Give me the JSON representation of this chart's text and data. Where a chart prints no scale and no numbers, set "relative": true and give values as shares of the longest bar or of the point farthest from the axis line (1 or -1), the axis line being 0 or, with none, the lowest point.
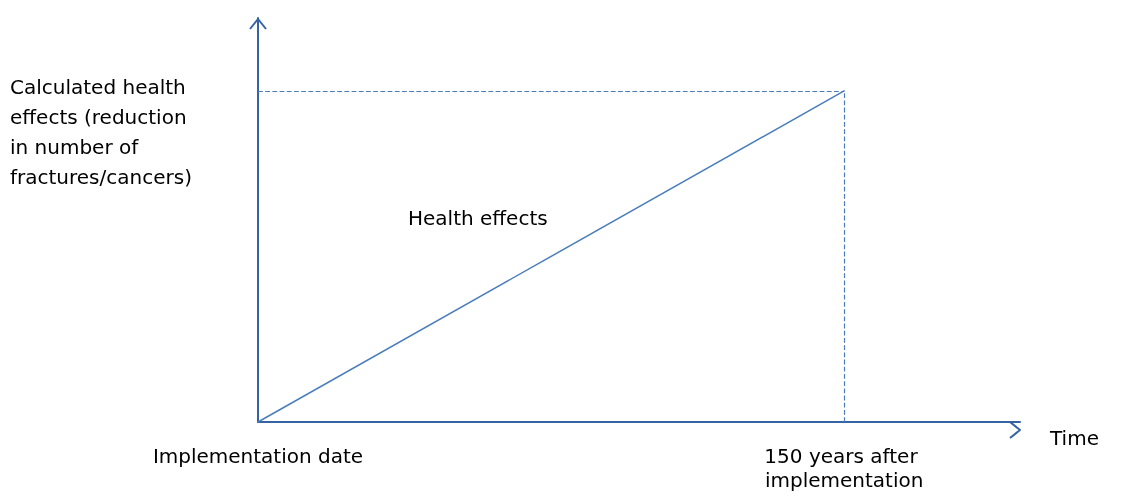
{
  "chart_data": {
    "type": "line",
    "relative": true,
    "ylabel": "Calculated health effects (reduction in number of fractures/cancers)",
    "xlabel": "Time",
    "categories": [
      "Implementation date",
      "150 years after implementation"
    ],
    "series": [
      {
        "color": "#4a7ebb",
        "values": [
          0,
          1
        ]
      }
    ],
    "annotations": [
      "Health effects"
    ],
    "ref_lines": [
      {
        "axis": "y",
        "value": 1,
        "color": "#4a7ebb",
        "line_style": "dashed"
      },
      {
        "axis": "x",
        "value": "150 years after implementation",
        "color": "#4a7ebb",
        "line_style": "dashed"
      }
    ],
    "grid": false,
    "marker": "none",
    "line_style": "solid"
  }
}
